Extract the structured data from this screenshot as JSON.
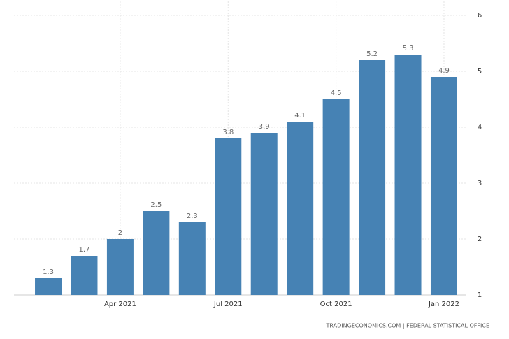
{
  "chart_data": {
    "type": "bar",
    "categories": [
      null,
      null,
      "Apr 2021",
      null,
      null,
      "Jul 2021",
      null,
      null,
      "Oct 2021",
      null,
      null,
      "Jan 2022"
    ],
    "values": [
      1.3,
      1.7,
      2,
      2.5,
      2.3,
      3.8,
      3.9,
      4.1,
      4.5,
      5.2,
      5.3,
      4.9
    ],
    "color": "#4682b4",
    "ylim": [
      1,
      6
    ],
    "yticks": [
      1,
      2,
      3,
      4,
      5,
      6
    ],
    "grid": true,
    "source": "TRADINGECONOMICS.COM | FEDERAL STATISTICAL OFFICE"
  }
}
